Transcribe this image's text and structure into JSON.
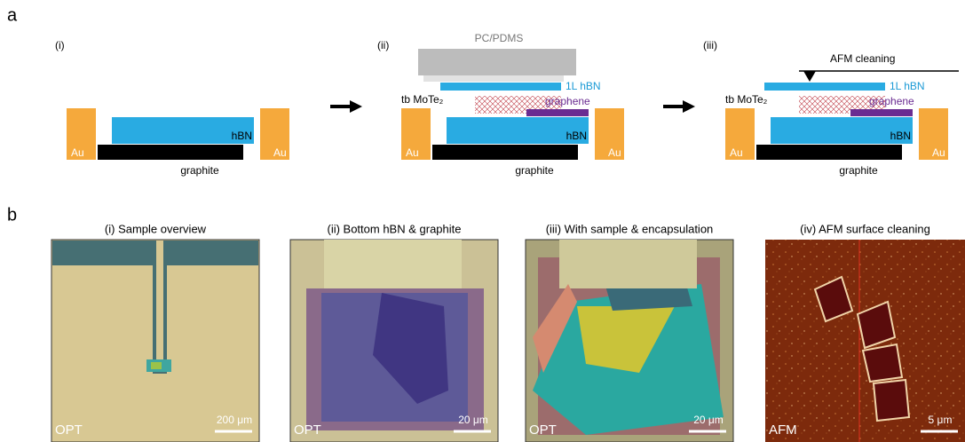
{
  "panel_a": {
    "label": "a",
    "steps": [
      {
        "label": "(i)",
        "au_left": "Au",
        "au_right": "Au",
        "hbn": "hBN",
        "graphite": "graphite"
      },
      {
        "label": "(ii)",
        "au_left": "Au",
        "au_right": "Au",
        "hbn": "hBN",
        "graphite": "graphite",
        "stamp": "PC/PDMS",
        "top_hbn": "1L hBN",
        "sample": "tb MoTe₂",
        "graphene": "graphene"
      },
      {
        "label": "(iii)",
        "au_left": "Au",
        "au_right": "Au",
        "hbn": "hBN",
        "graphite": "graphite",
        "tip": "AFM cleaning",
        "top_hbn": "1L hBN",
        "sample": "tb MoTe₂",
        "graphene": "graphene"
      }
    ]
  },
  "panel_b": {
    "label": "b",
    "images": [
      {
        "title": "(i) Sample overview",
        "mode": "OPT",
        "scale": "200 μm"
      },
      {
        "title": "(ii) Bottom hBN & graphite",
        "mode": "OPT",
        "scale": "20 μm"
      },
      {
        "title": "(iii) With sample & encapsulation",
        "mode": "OPT",
        "scale": "20 μm"
      },
      {
        "title": "(iv) AFM surface cleaning",
        "mode": "AFM",
        "scale": "5 μm"
      }
    ]
  }
}
